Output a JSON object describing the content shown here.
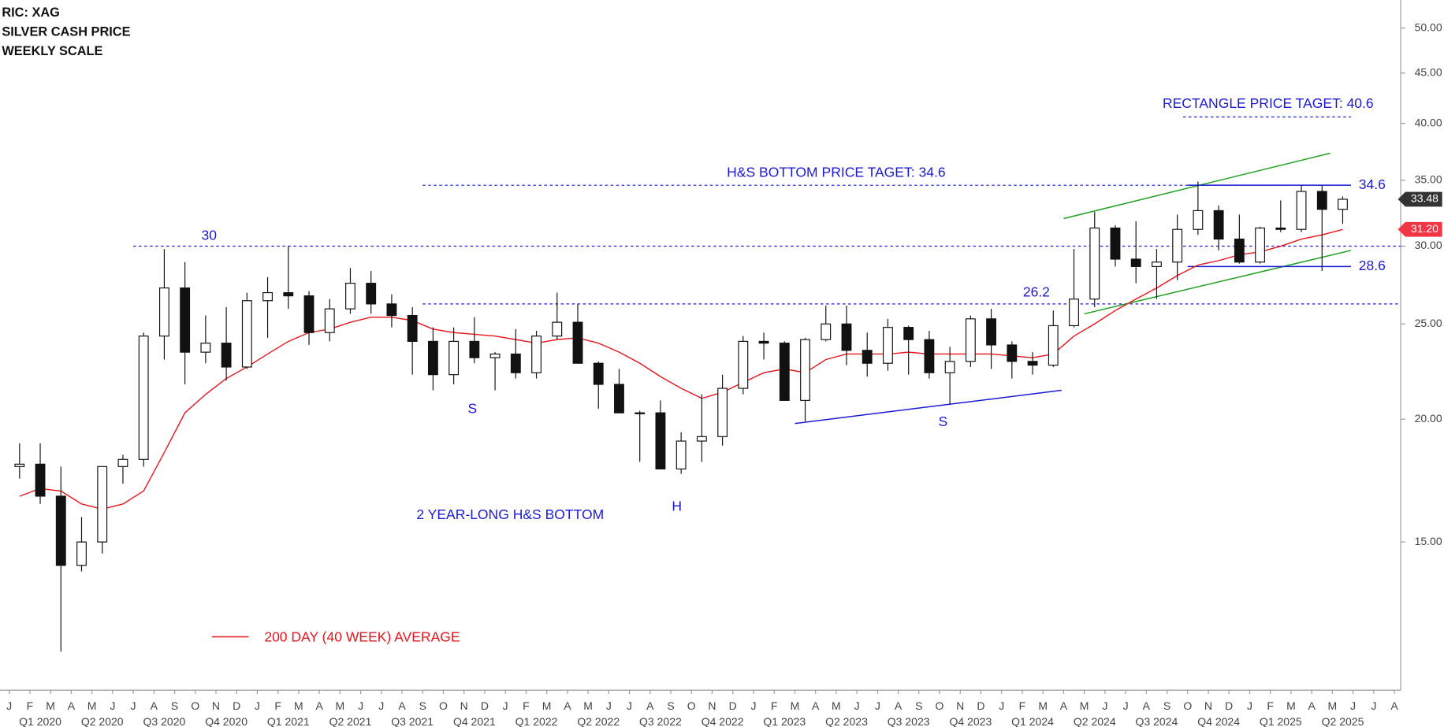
{
  "chart_data": {
    "type": "candlestick",
    "header": [
      "RIC: XAG",
      "SILVER CASH PRICE",
      "WEEKLY SCALE"
    ],
    "x": [
      "2020-01",
      "2020-02",
      "2020-03",
      "2020-04",
      "2020-05",
      "2020-06",
      "2020-07",
      "2020-08",
      "2020-09",
      "2020-10",
      "2020-11",
      "2020-12",
      "2021-01",
      "2021-02",
      "2021-03",
      "2021-04",
      "2021-05",
      "2021-06",
      "2021-07",
      "2021-08",
      "2021-09",
      "2021-10",
      "2021-11",
      "2021-12",
      "2022-01",
      "2022-02",
      "2022-03",
      "2022-04",
      "2022-05",
      "2022-06",
      "2022-07",
      "2022-08",
      "2022-09",
      "2022-10",
      "2022-11",
      "2022-12",
      "2023-01",
      "2023-02",
      "2023-03",
      "2023-04",
      "2023-05",
      "2023-06",
      "2023-07",
      "2023-08",
      "2023-09",
      "2023-10",
      "2023-11",
      "2023-12",
      "2024-01",
      "2024-02",
      "2024-03",
      "2024-04",
      "2024-05",
      "2024-06",
      "2024-07",
      "2024-08",
      "2024-09",
      "2024-10",
      "2024-11",
      "2024-12",
      "2025-01",
      "2025-02",
      "2025-03",
      "2025-04",
      "2025-05"
    ],
    "open": [
      17.9,
      18.0,
      16.7,
      14.2,
      15.0,
      17.9,
      18.2,
      24.3,
      27.2,
      23.4,
      23.9,
      22.6,
      26.4,
      26.9,
      26.7,
      24.5,
      25.9,
      27.5,
      26.2,
      25.5,
      24.0,
      22.2,
      24.0,
      23.1,
      23.3,
      22.3,
      24.3,
      25.1,
      22.8,
      21.7,
      20.3,
      20.3,
      17.8,
      19.0,
      19.2,
      21.5,
      24.0,
      23.9,
      20.9,
      24.1,
      25.0,
      23.5,
      22.8,
      24.8,
      24.1,
      22.3,
      22.9,
      25.3,
      23.8,
      22.9,
      22.7,
      24.9,
      26.5,
      31.3,
      29.1,
      28.6,
      28.9,
      31.2,
      32.6,
      30.5,
      28.9,
      31.3,
      31.2,
      34.1,
      32.7
    ],
    "high": [
      18.9,
      18.9,
      17.9,
      15.9,
      17.9,
      18.4,
      24.5,
      29.8,
      28.9,
      25.5,
      26.0,
      26.9,
      27.9,
      30.0,
      27.0,
      26.5,
      28.5,
      28.3,
      26.8,
      26.0,
      24.8,
      24.8,
      25.4,
      23.4,
      24.7,
      24.6,
      26.9,
      26.2,
      22.9,
      22.5,
      20.4,
      20.9,
      19.4,
      21.2,
      22.2,
      24.3,
      24.5,
      24.0,
      24.2,
      26.1,
      26.1,
      24.5,
      25.3,
      24.9,
      24.6,
      23.7,
      25.5,
      25.9,
      24.0,
      23.4,
      25.8,
      29.8,
      32.5,
      31.5,
      31.8,
      29.8,
      32.3,
      34.9,
      33.0,
      32.3,
      31.4,
      33.4,
      34.6,
      34.6,
      33.7
    ],
    "low": [
      17.4,
      16.4,
      11.6,
      14.0,
      14.6,
      17.2,
      17.9,
      23.0,
      21.7,
      22.8,
      21.9,
      22.5,
      24.2,
      25.9,
      23.8,
      24.0,
      25.6,
      25.6,
      24.8,
      22.2,
      21.4,
      21.7,
      22.8,
      21.4,
      22.0,
      22.0,
      24.1,
      22.8,
      20.5,
      20.5,
      18.1,
      17.9,
      17.6,
      18.1,
      18.8,
      21.2,
      23.0,
      21.3,
      19.9,
      24.0,
      22.7,
      22.1,
      22.4,
      22.2,
      22.0,
      20.7,
      22.6,
      22.5,
      22.0,
      22.2,
      22.6,
      24.8,
      26.0,
      28.6,
      27.5,
      26.5,
      27.7,
      30.8,
      29.7,
      28.8,
      28.8,
      31.0,
      31.0,
      28.3,
      31.6
    ],
    "close": [
      18.0,
      16.7,
      14.2,
      15.0,
      17.9,
      18.2,
      24.3,
      27.2,
      23.4,
      23.9,
      22.6,
      26.4,
      26.9,
      26.7,
      24.5,
      25.9,
      27.5,
      26.2,
      25.5,
      24.0,
      22.2,
      24.0,
      23.1,
      23.3,
      22.3,
      24.3,
      25.1,
      22.8,
      21.7,
      20.3,
      20.3,
      17.8,
      19.0,
      19.2,
      21.5,
      24.0,
      23.9,
      20.9,
      24.1,
      25.0,
      23.5,
      22.8,
      24.8,
      24.1,
      22.3,
      22.9,
      25.3,
      23.8,
      22.9,
      22.7,
      24.9,
      26.5,
      31.3,
      29.1,
      28.6,
      28.9,
      31.2,
      32.6,
      30.5,
      28.9,
      31.3,
      31.2,
      34.1,
      32.7,
      33.48
    ],
    "average": {
      "name": "200 DAY (40 WEEK) AVERAGE",
      "color": "#e8141b",
      "values": [
        16.7,
        17.0,
        16.9,
        16.4,
        16.2,
        16.4,
        16.9,
        18.5,
        20.3,
        21.2,
        22.0,
        22.6,
        23.3,
        24.0,
        24.5,
        24.7,
        25.1,
        25.4,
        25.4,
        25.2,
        24.7,
        24.5,
        24.4,
        24.3,
        24.1,
        23.9,
        24.1,
        24.2,
        23.9,
        23.4,
        22.8,
        22.1,
        21.5,
        21.0,
        21.3,
        21.8,
        22.3,
        22.5,
        22.3,
        23.0,
        23.3,
        23.3,
        23.3,
        23.4,
        23.3,
        23.3,
        23.3,
        23.3,
        23.2,
        23.1,
        23.3,
        24.3,
        25.0,
        25.8,
        26.5,
        27.2,
        28.0,
        28.7,
        29.0,
        29.4,
        29.6,
        30.0,
        30.5,
        30.8,
        31.2
      ]
    },
    "ylim": [
      10.6,
      53.4
    ],
    "log_scale": true,
    "yticks": [
      {
        "value": 15,
        "label": "15.00"
      },
      {
        "value": 20,
        "label": "20.00"
      },
      {
        "value": 25,
        "label": "25.00"
      },
      {
        "value": 30,
        "label": "30.00"
      },
      {
        "value": 35,
        "label": "35.00"
      },
      {
        "value": 40,
        "label": "40.00"
      },
      {
        "value": 45,
        "label": "45.00"
      },
      {
        "value": 50,
        "label": "50.00"
      }
    ],
    "months": [
      "J",
      "F",
      "M",
      "A",
      "M",
      "J",
      "J",
      "A",
      "S",
      "O",
      "N",
      "D",
      "J",
      "F",
      "M",
      "A",
      "M",
      "J",
      "J",
      "A",
      "S",
      "O",
      "N",
      "D",
      "J",
      "F",
      "M",
      "A",
      "M",
      "J",
      "J",
      "A",
      "S",
      "O",
      "N",
      "D",
      "J",
      "F",
      "M",
      "A",
      "M",
      "J",
      "J",
      "A",
      "S",
      "O",
      "N",
      "D",
      "J",
      "F",
      "M",
      "A",
      "M",
      "J",
      "J",
      "A",
      "S",
      "O",
      "N",
      "D",
      "J",
      "F",
      "M",
      "A",
      "M",
      "J",
      "J",
      "A"
    ],
    "quarters": [
      "Q1 2020",
      "Q2 2020",
      "Q3 2020",
      "Q4 2020",
      "Q1 2021",
      "Q2 2021",
      "Q3 2021",
      "Q4 2021",
      "Q1 2022",
      "Q2 2022",
      "Q3 2022",
      "Q4 2022",
      "Q1 2023",
      "Q2 2023",
      "Q3 2023",
      "Q4 2023",
      "Q1 2024",
      "Q2 2024",
      "Q3 2024",
      "Q4 2024",
      "Q1 2025",
      "Q2 2025"
    ],
    "price_badges": [
      {
        "value": 33.48,
        "label": "33.48",
        "color": "#333333"
      },
      {
        "value": 31.2,
        "label": "31.20",
        "color": "#f23645"
      }
    ],
    "levels": [
      {
        "value": 30,
        "from": "2020-07",
        "label": "30"
      },
      {
        "value": 26.2,
        "from": "2021-09",
        "label": "26.2"
      },
      {
        "value": 34.6,
        "from": "2021-09",
        "to": "2025-05",
        "label": "H&S BOTTOM PRICE TAGET: 34.6"
      },
      {
        "value": 40.6,
        "from": "2024-10",
        "to": "2025-05",
        "label": "RECTANGLE PRICE TAGET: 40.6"
      }
    ],
    "trendlines": [
      {
        "color": "#22a022",
        "from": [
          "2024-04",
          32.0
        ],
        "to": [
          "2025-04",
          37.3
        ]
      },
      {
        "color": "#22a022",
        "from": [
          "2024-05",
          25.6
        ],
        "to": [
          "2025-05",
          29.7
        ]
      },
      {
        "color": "#1a1ad6",
        "from": [
          "2023-03",
          19.8
        ],
        "to": [
          "2024-03",
          21.4
        ]
      },
      {
        "color": "#1a1ad6",
        "from": [
          "2024-10",
          34.6
        ],
        "to": [
          "2025-05",
          34.6
        ],
        "label": "34.6"
      },
      {
        "color": "#1a1ad6",
        "from": [
          "2024-10",
          28.6
        ],
        "to": [
          "2025-05",
          28.6
        ],
        "label": "28.6"
      }
    ],
    "annotations": [
      "S",
      "S",
      "H",
      "2 YEAR-LONG H&S BOTTOM"
    ]
  }
}
